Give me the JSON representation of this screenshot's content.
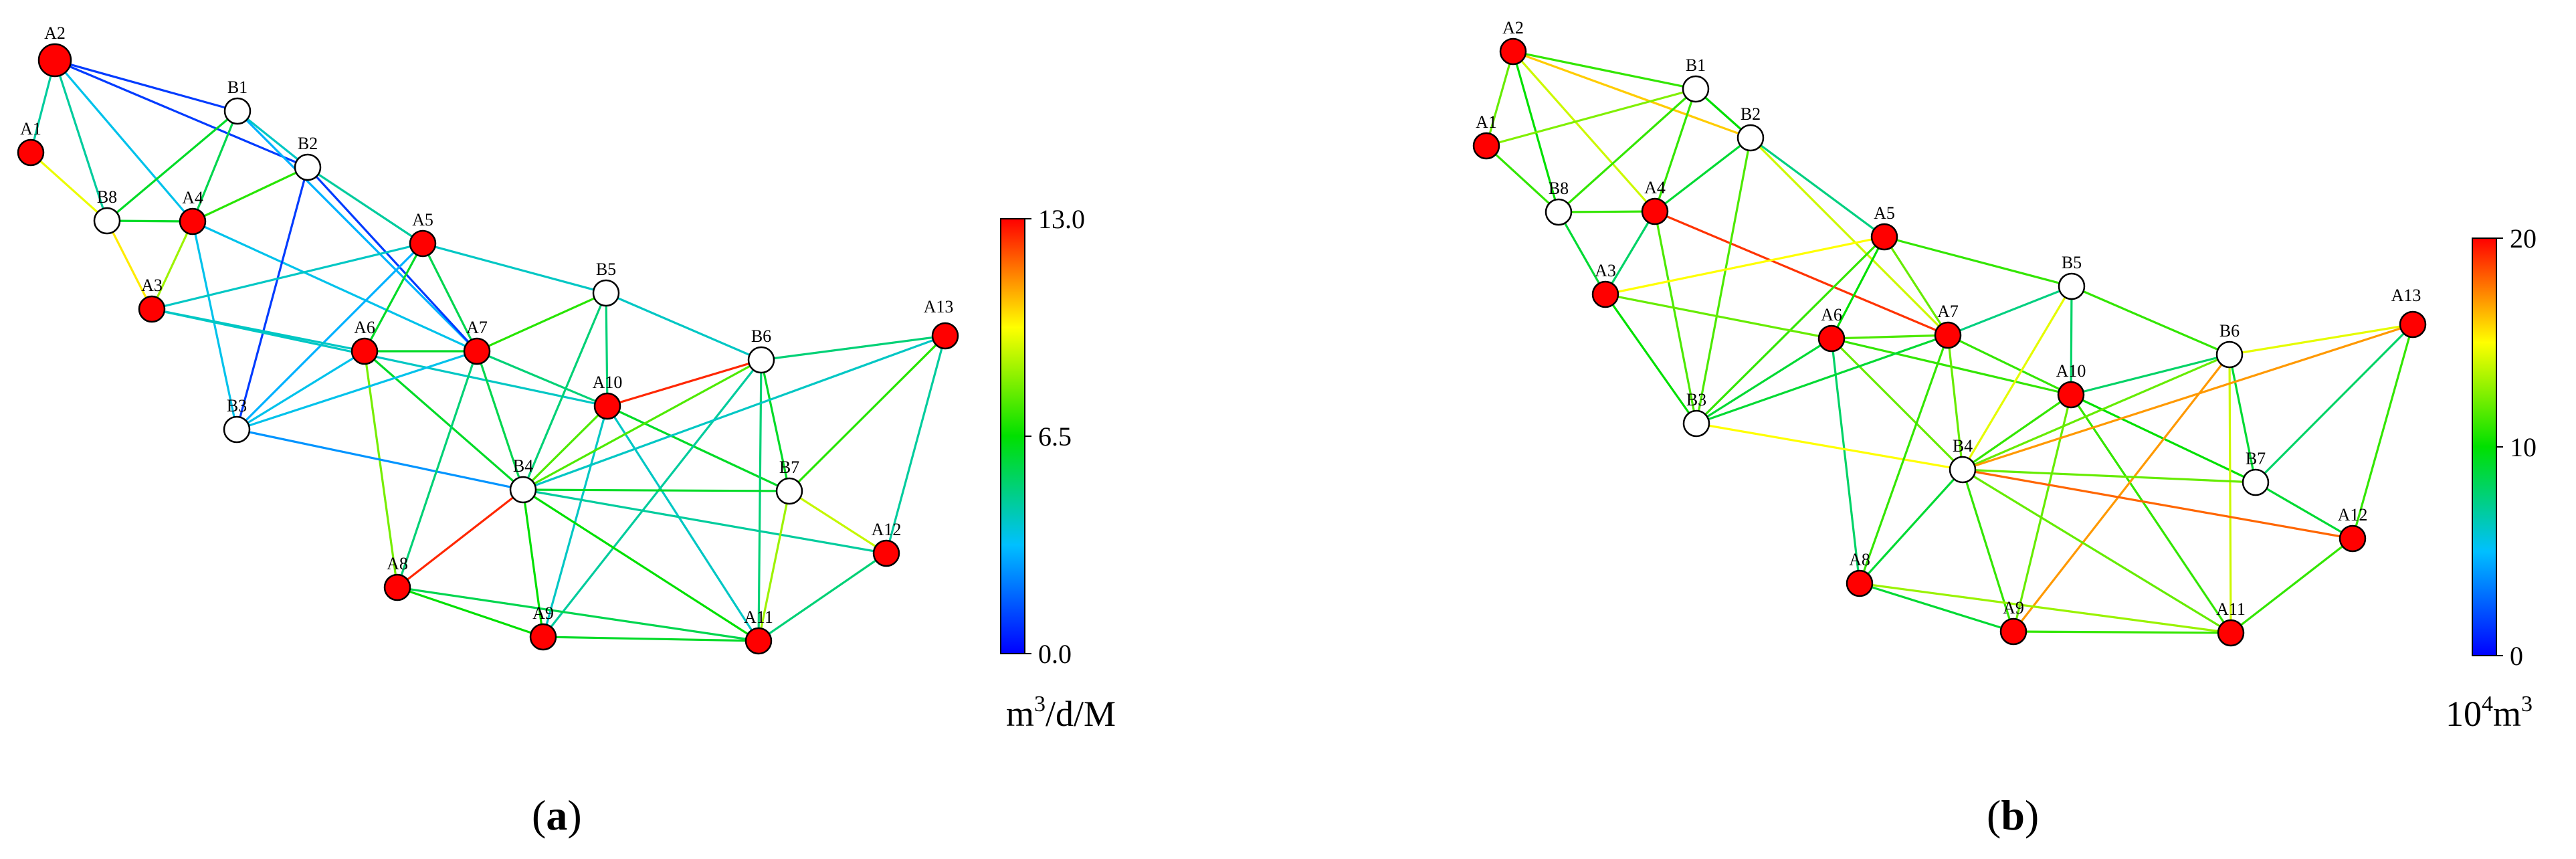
{
  "panels": [
    {
      "id": "a",
      "panel_label": "a",
      "colorbar": {
        "max_label": "13.0",
        "mid_label": "6.5",
        "min_label": "0.0",
        "min": 0,
        "max": 13,
        "unit_base": "m",
        "unit_sup": "3",
        "unit_tail": "/d/M"
      },
      "nodes": [
        {
          "id": "A1",
          "type": "A"
        },
        {
          "id": "A2",
          "type": "A"
        },
        {
          "id": "A3",
          "type": "A"
        },
        {
          "id": "A4",
          "type": "A"
        },
        {
          "id": "A5",
          "type": "A"
        },
        {
          "id": "A6",
          "type": "A"
        },
        {
          "id": "A7",
          "type": "A"
        },
        {
          "id": "A8",
          "type": "A"
        },
        {
          "id": "A9",
          "type": "A"
        },
        {
          "id": "A10",
          "type": "A"
        },
        {
          "id": "A11",
          "type": "A"
        },
        {
          "id": "A12",
          "type": "A"
        },
        {
          "id": "A13",
          "type": "A"
        },
        {
          "id": "B1",
          "type": "B"
        },
        {
          "id": "B2",
          "type": "B"
        },
        {
          "id": "B3",
          "type": "B"
        },
        {
          "id": "B4",
          "type": "B"
        },
        {
          "id": "B5",
          "type": "B"
        },
        {
          "id": "B6",
          "type": "B"
        },
        {
          "id": "B7",
          "type": "B"
        },
        {
          "id": "B8",
          "type": "B"
        }
      ],
      "edges": [
        [
          "A2",
          "B1",
          1.0
        ],
        [
          "A2",
          "B2",
          1.0
        ],
        [
          "A2",
          "A1",
          4.5
        ],
        [
          "A2",
          "B8",
          4.5
        ],
        [
          "A2",
          "A4",
          3.5
        ],
        [
          "A1",
          "B8",
          9.5
        ],
        [
          "B1",
          "B8",
          6.0
        ],
        [
          "B1",
          "A4",
          5.5
        ],
        [
          "B1",
          "B2",
          4.0
        ],
        [
          "B1",
          "A7",
          3.0
        ],
        [
          "B8",
          "A4",
          6.0
        ],
        [
          "B8",
          "A3",
          10.0
        ],
        [
          "A4",
          "B2",
          7.0
        ],
        [
          "A4",
          "A3",
          8.5
        ],
        [
          "A4",
          "B3",
          3.5
        ],
        [
          "A4",
          "A7",
          3.5
        ],
        [
          "B2",
          "B3",
          1.0
        ],
        [
          "B2",
          "A7",
          1.0
        ],
        [
          "B2",
          "A5",
          4.5
        ],
        [
          "A5",
          "B5",
          4.0
        ],
        [
          "A5",
          "A3",
          4.0
        ],
        [
          "A5",
          "B3",
          3.0
        ],
        [
          "A5",
          "A6",
          6.0
        ],
        [
          "A5",
          "A7",
          5.5
        ],
        [
          "A3",
          "A6",
          4.0
        ],
        [
          "A3",
          "A10",
          4.0
        ],
        [
          "A6",
          "B3",
          3.5
        ],
        [
          "A6",
          "A8",
          8.0
        ],
        [
          "A6",
          "A7",
          6.0
        ],
        [
          "A6",
          "B4",
          6.0
        ],
        [
          "B3",
          "A7",
          3.5
        ],
        [
          "B3",
          "B4",
          2.5
        ],
        [
          "A7",
          "B5",
          7.0
        ],
        [
          "A7",
          "B4",
          5.5
        ],
        [
          "A7",
          "A8",
          5.0
        ],
        [
          "A7",
          "A10",
          5.0
        ],
        [
          "B5",
          "B4",
          5.0
        ],
        [
          "B5",
          "A10",
          5.0
        ],
        [
          "B5",
          "B6",
          4.0
        ],
        [
          "A10",
          "B6",
          12.5
        ],
        [
          "A10",
          "B4",
          7.5
        ],
        [
          "A10",
          "B7",
          6.0
        ],
        [
          "A10",
          "A9",
          4.0
        ],
        [
          "A10",
          "A11",
          4.0
        ],
        [
          "B6",
          "A13",
          5.0
        ],
        [
          "B6",
          "B4",
          7.5
        ],
        [
          "B6",
          "A9",
          4.5
        ],
        [
          "B6",
          "A11",
          5.0
        ],
        [
          "B6",
          "B7",
          6.0
        ],
        [
          "A13",
          "B4",
          4.0
        ],
        [
          "A13",
          "B7",
          7.0
        ],
        [
          "A13",
          "A12",
          4.5
        ],
        [
          "B4",
          "A8",
          12.5
        ],
        [
          "B4",
          "A9",
          6.5
        ],
        [
          "B4",
          "A11",
          6.5
        ],
        [
          "B4",
          "B7",
          6.0
        ],
        [
          "B4",
          "A12",
          4.5
        ],
        [
          "B7",
          "A11",
          8.5
        ],
        [
          "B7",
          "A12",
          9.0
        ],
        [
          "A8",
          "A9",
          6.5
        ],
        [
          "A8",
          "A11",
          5.5
        ],
        [
          "A9",
          "A11",
          6.0
        ],
        [
          "A12",
          "A11",
          5.0
        ]
      ]
    },
    {
      "id": "b",
      "panel_label": "b",
      "colorbar": {
        "max_label": "20",
        "mid_label": "10",
        "min_label": "0",
        "min": 0,
        "max": 20,
        "unit_base": "10",
        "unit_sup": "4",
        "unit_tail": "m",
        "unit_sup2": "3"
      },
      "nodes": [
        {
          "id": "A1",
          "type": "A"
        },
        {
          "id": "A2",
          "type": "A"
        },
        {
          "id": "A3",
          "type": "A"
        },
        {
          "id": "A4",
          "type": "A"
        },
        {
          "id": "A5",
          "type": "A"
        },
        {
          "id": "A6",
          "type": "A"
        },
        {
          "id": "A7",
          "type": "A"
        },
        {
          "id": "A8",
          "type": "A"
        },
        {
          "id": "A9",
          "type": "A"
        },
        {
          "id": "A10",
          "type": "A"
        },
        {
          "id": "A11",
          "type": "A"
        },
        {
          "id": "A12",
          "type": "A"
        },
        {
          "id": "A13",
          "type": "A"
        },
        {
          "id": "B1",
          "type": "B"
        },
        {
          "id": "B2",
          "type": "B"
        },
        {
          "id": "B3",
          "type": "B"
        },
        {
          "id": "B4",
          "type": "B"
        },
        {
          "id": "B5",
          "type": "B"
        },
        {
          "id": "B6",
          "type": "B"
        },
        {
          "id": "B7",
          "type": "B"
        },
        {
          "id": "B8",
          "type": "B"
        }
      ],
      "edges": [
        [
          "A2",
          "B1",
          11.0
        ],
        [
          "A2",
          "B2",
          16.0
        ],
        [
          "A2",
          "A1",
          12.0
        ],
        [
          "A2",
          "B8",
          10.0
        ],
        [
          "A2",
          "A4",
          14.0
        ],
        [
          "A1",
          "B1",
          12.5
        ],
        [
          "A1",
          "B8",
          11.0
        ],
        [
          "B1",
          "B8",
          11.0
        ],
        [
          "B1",
          "A4",
          11.0
        ],
        [
          "B1",
          "B2",
          10.0
        ],
        [
          "B8",
          "A4",
          11.0
        ],
        [
          "B8",
          "A3",
          9.0
        ],
        [
          "A4",
          "A3",
          8.0
        ],
        [
          "A4",
          "B3",
          11.5
        ],
        [
          "A4",
          "B2",
          9.0
        ],
        [
          "A4",
          "A7",
          19.0
        ],
        [
          "B2",
          "B3",
          11.5
        ],
        [
          "B2",
          "A7",
          14.0
        ],
        [
          "B2",
          "A5",
          7.5
        ],
        [
          "A5",
          "A3",
          15.0
        ],
        [
          "A5",
          "B5",
          11.0
        ],
        [
          "A5",
          "A6",
          10.0
        ],
        [
          "A5",
          "A7",
          12.0
        ],
        [
          "A5",
          "B3",
          11.0
        ],
        [
          "A3",
          "A6",
          12.0
        ],
        [
          "A3",
          "B3",
          10.0
        ],
        [
          "A6",
          "A7",
          11.5
        ],
        [
          "A6",
          "B3",
          9.0
        ],
        [
          "A6",
          "A8",
          8.0
        ],
        [
          "A6",
          "B4",
          12.0
        ],
        [
          "A6",
          "A10",
          11.0
        ],
        [
          "B3",
          "A7",
          9.0
        ],
        [
          "B3",
          "B4",
          15.0
        ],
        [
          "A7",
          "B5",
          7.5
        ],
        [
          "A7",
          "B4",
          12.0
        ],
        [
          "A7",
          "A8",
          11.0
        ],
        [
          "A7",
          "A10",
          11.0
        ],
        [
          "B5",
          "B4",
          14.5
        ],
        [
          "B5",
          "A10",
          8.0
        ],
        [
          "B5",
          "B6",
          11.0
        ],
        [
          "A10",
          "B6",
          8.0
        ],
        [
          "A10",
          "B4",
          11.0
        ],
        [
          "A10",
          "A9",
          12.0
        ],
        [
          "A10",
          "A11",
          11.0
        ],
        [
          "A10",
          "B7",
          10.0
        ],
        [
          "B6",
          "A13",
          14.5
        ],
        [
          "B6",
          "B4",
          12.0
        ],
        [
          "B6",
          "A9",
          17.0
        ],
        [
          "B6",
          "A11",
          14.0
        ],
        [
          "B6",
          "B7",
          9.0
        ],
        [
          "A13",
          "B4",
          17.0
        ],
        [
          "A13",
          "B7",
          8.0
        ],
        [
          "A13",
          "A12",
          11.0
        ],
        [
          "B4",
          "A8",
          9.0
        ],
        [
          "B4",
          "A9",
          11.0
        ],
        [
          "B4",
          "A11",
          12.0
        ],
        [
          "B4",
          "B7",
          12.0
        ],
        [
          "B4",
          "A12",
          18.0
        ],
        [
          "B7",
          "A12",
          9.0
        ],
        [
          "A8",
          "A9",
          9.0
        ],
        [
          "A8",
          "A11",
          13.0
        ],
        [
          "A9",
          "A11",
          11.0
        ],
        [
          "A12",
          "A11",
          11.0
        ]
      ]
    }
  ]
}
